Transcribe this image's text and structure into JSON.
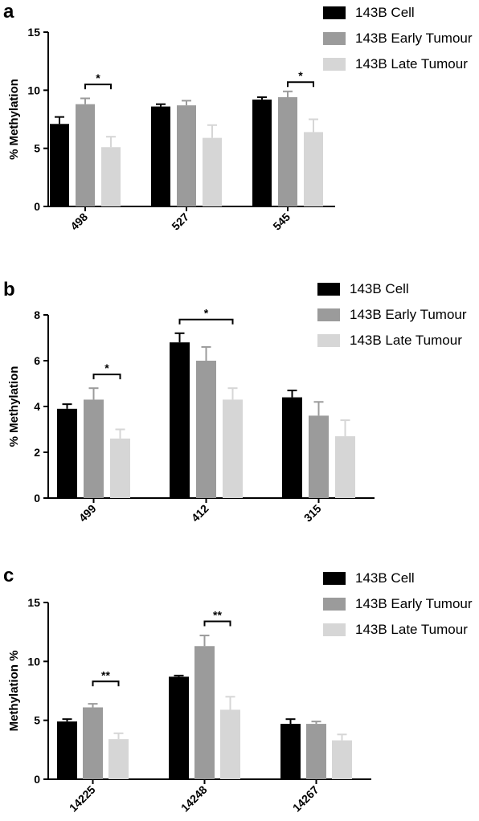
{
  "chart_data": [
    {
      "type": "bar",
      "panel_label": "a",
      "ylabel": "% Methylation",
      "ylim": [
        0,
        15
      ],
      "yticks": [
        "0",
        "5",
        "10",
        "15"
      ],
      "categories": [
        "498",
        "527",
        "545"
      ],
      "series": [
        {
          "name": "143B Cell",
          "color": "#000000",
          "values": [
            7.1,
            8.6,
            9.2
          ],
          "errors": [
            0.6,
            0.2,
            0.2
          ]
        },
        {
          "name": "143B Early Tumour",
          "color": "#9b9b9b",
          "values": [
            8.8,
            8.7,
            9.4
          ],
          "errors": [
            0.5,
            0.4,
            0.5
          ]
        },
        {
          "name": "143B Late Tumour",
          "color": "#d6d6d6",
          "values": [
            5.1,
            5.9,
            6.4
          ],
          "errors": [
            0.9,
            1.1,
            1.1
          ]
        }
      ],
      "significance": [
        {
          "category": 0,
          "from": 1,
          "to": 2,
          "label": "*",
          "y": 10.5
        },
        {
          "category": 2,
          "from": 1,
          "to": 2,
          "label": "*",
          "y": 10.7
        }
      ],
      "legend_position": "top-right"
    },
    {
      "type": "bar",
      "panel_label": "b",
      "ylabel": "% Methylation",
      "ylim": [
        0,
        8
      ],
      "yticks": [
        "0",
        "2",
        "4",
        "6",
        "8"
      ],
      "categories": [
        "499",
        "412",
        "315"
      ],
      "series": [
        {
          "name": "143B Cell",
          "color": "#000000",
          "values": [
            3.9,
            6.8,
            4.4
          ],
          "errors": [
            0.2,
            0.4,
            0.3
          ]
        },
        {
          "name": "143B Early Tumour",
          "color": "#9b9b9b",
          "values": [
            4.3,
            6.0,
            3.6
          ],
          "errors": [
            0.5,
            0.6,
            0.6
          ]
        },
        {
          "name": "143B Late Tumour",
          "color": "#d6d6d6",
          "values": [
            2.6,
            4.3,
            2.7
          ],
          "errors": [
            0.4,
            0.5,
            0.7
          ]
        }
      ],
      "significance": [
        {
          "category": 0,
          "from": 1,
          "to": 2,
          "label": "*",
          "y": 5.4
        },
        {
          "category": 1,
          "from": 0,
          "to": 2,
          "label": "*",
          "y": 7.8
        }
      ],
      "legend_position": "top-right"
    },
    {
      "type": "bar",
      "panel_label": "c",
      "ylabel": "Methylation %",
      "ylim": [
        0,
        15
      ],
      "yticks": [
        "0",
        "5",
        "10",
        "15"
      ],
      "categories": [
        "14225",
        "14248",
        "14267"
      ],
      "series": [
        {
          "name": "143B Cell",
          "color": "#000000",
          "values": [
            4.9,
            8.7,
            4.7
          ],
          "errors": [
            0.2,
            0.1,
            0.4
          ]
        },
        {
          "name": "143B Early Tumour",
          "color": "#9b9b9b",
          "values": [
            6.1,
            11.3,
            4.7
          ],
          "errors": [
            0.3,
            0.9,
            0.2
          ]
        },
        {
          "name": "143B Late Tumour",
          "color": "#d6d6d6",
          "values": [
            3.4,
            5.9,
            3.3
          ],
          "errors": [
            0.5,
            1.1,
            0.5
          ]
        }
      ],
      "significance": [
        {
          "category": 0,
          "from": 1,
          "to": 2,
          "label": "**",
          "y": 8.3
        },
        {
          "category": 1,
          "from": 1,
          "to": 2,
          "label": "**",
          "y": 13.4
        }
      ],
      "legend_position": "top-right"
    }
  ]
}
